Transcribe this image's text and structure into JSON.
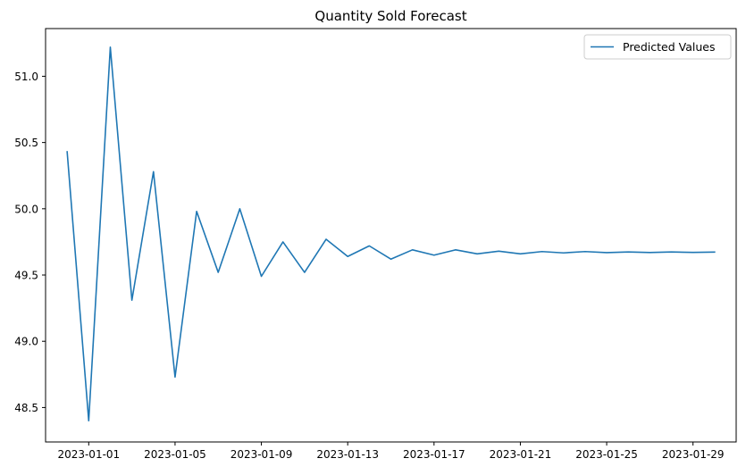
{
  "chart_data": {
    "type": "line",
    "title": "Quantity Sold Forecast",
    "xlabel": "",
    "ylabel": "",
    "x_tick_labels": [
      "2023-01-01",
      "2023-01-05",
      "2023-01-09",
      "2023-01-13",
      "2023-01-17",
      "2023-01-21",
      "2023-01-25",
      "2023-01-29"
    ],
    "y_tick_labels": [
      "48.5",
      "49.0",
      "49.5",
      "50.0",
      "50.5",
      "51.0"
    ],
    "x_ticks": [
      "2023-01-01",
      "2023-01-05",
      "2023-01-09",
      "2023-01-13",
      "2023-01-17",
      "2023-01-21",
      "2023-01-25",
      "2023-01-29"
    ],
    "y_ticks": [
      48.5,
      49.0,
      49.5,
      50.0,
      50.5,
      51.0
    ],
    "xlim": [
      "2022-12-30",
      "2023-01-31"
    ],
    "ylim": [
      48.24,
      51.36
    ],
    "grid": false,
    "legend_position": "top-right",
    "series": [
      {
        "name": "Predicted Values",
        "color": "#1f77b4",
        "x": [
          "2022-12-31",
          "2023-01-01",
          "2023-01-02",
          "2023-01-03",
          "2023-01-04",
          "2023-01-05",
          "2023-01-06",
          "2023-01-07",
          "2023-01-08",
          "2023-01-09",
          "2023-01-10",
          "2023-01-11",
          "2023-01-12",
          "2023-01-13",
          "2023-01-14",
          "2023-01-15",
          "2023-01-16",
          "2023-01-17",
          "2023-01-18",
          "2023-01-19",
          "2023-01-20",
          "2023-01-21",
          "2023-01-22",
          "2023-01-23",
          "2023-01-24",
          "2023-01-25",
          "2023-01-26",
          "2023-01-27",
          "2023-01-28",
          "2023-01-29",
          "2023-01-30"
        ],
        "values": [
          50.43,
          48.4,
          51.22,
          49.31,
          50.28,
          48.73,
          49.98,
          49.52,
          50.0,
          49.49,
          49.75,
          49.52,
          49.77,
          49.64,
          49.72,
          49.62,
          49.69,
          49.65,
          49.69,
          49.66,
          49.68,
          49.66,
          49.677,
          49.667,
          49.677,
          49.669,
          49.674,
          49.67,
          49.674,
          49.671,
          49.673
        ]
      }
    ]
  }
}
